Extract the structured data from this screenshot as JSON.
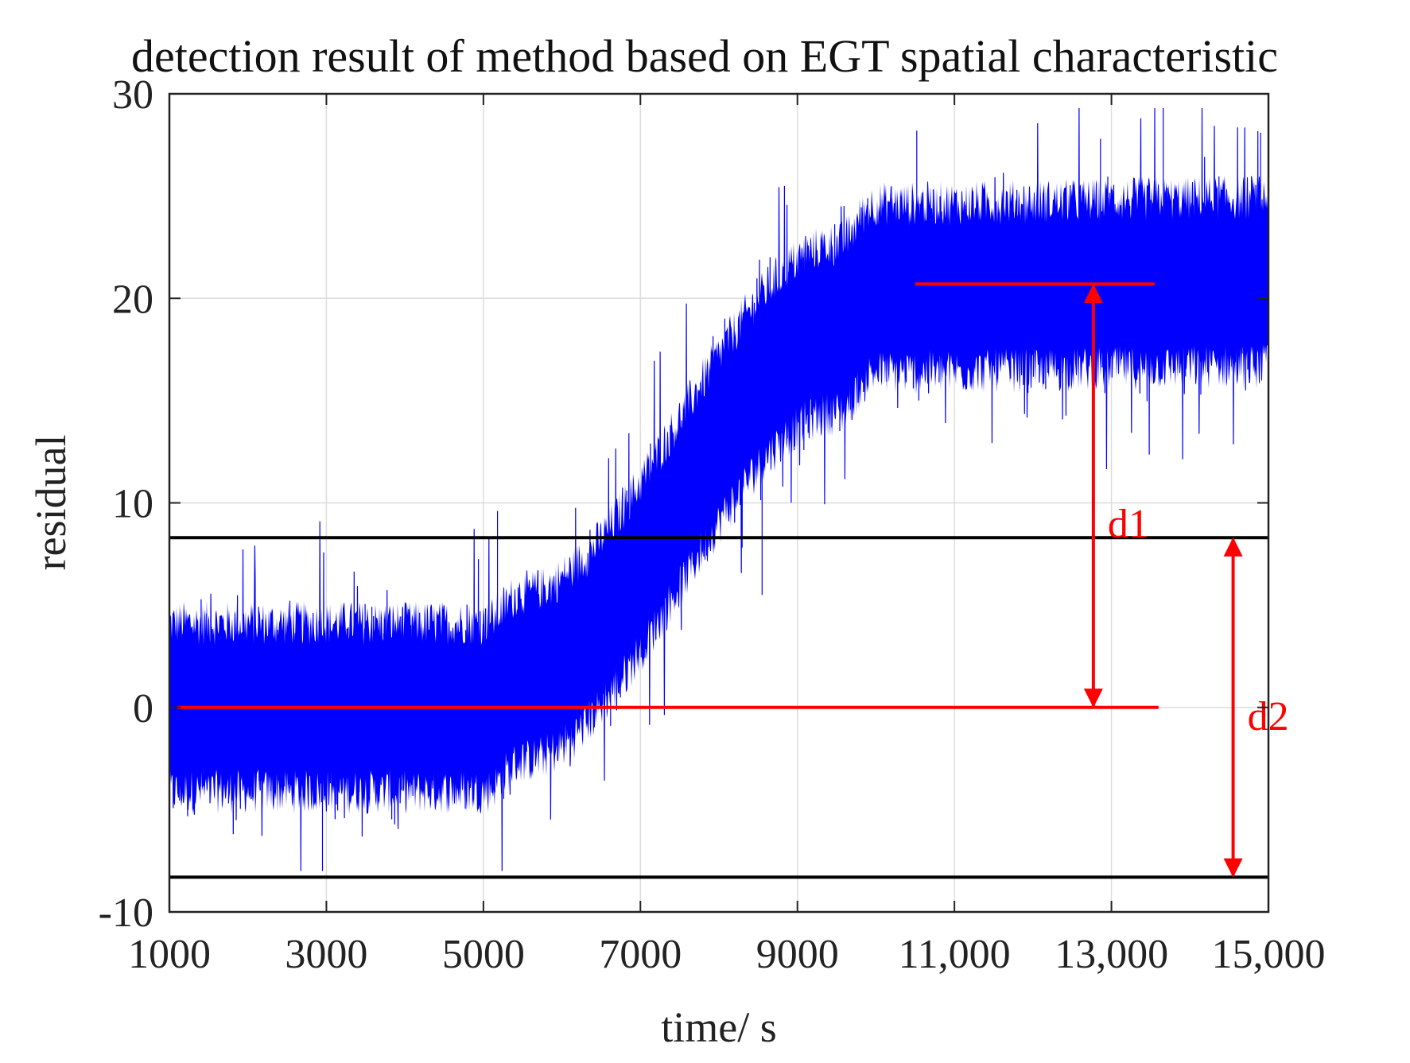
{
  "chart_data": {
    "type": "line",
    "title": "detection result of method based on EGT spatial characteristic",
    "xlabel": "time/ s",
    "ylabel": "residual",
    "xlim": [
      1000,
      15000
    ],
    "ylim": [
      -10,
      30
    ],
    "grid": true,
    "x_ticks": [
      {
        "value": 1000,
        "label": "1000"
      },
      {
        "value": 3000,
        "label": "3000"
      },
      {
        "value": 5000,
        "label": "5000"
      },
      {
        "value": 7000,
        "label": "7000"
      },
      {
        "value": 9000,
        "label": "9000"
      },
      {
        "value": 11000,
        "label": "11,000"
      },
      {
        "value": 13000,
        "label": "13,000"
      },
      {
        "value": 15000,
        "label": "15,000"
      }
    ],
    "y_ticks": [
      {
        "value": -10,
        "label": "-10"
      },
      {
        "value": 0,
        "label": "0"
      },
      {
        "value": 10,
        "label": "10"
      },
      {
        "value": 20,
        "label": "20"
      },
      {
        "value": 30,
        "label": "30"
      }
    ],
    "series": [
      {
        "name": "residual",
        "color": "#0000ff",
        "trend": {
          "x": [
            1000,
            5000,
            5500,
            9500,
            10000,
            15000
          ],
          "y": [
            0.0,
            0.0,
            1.5,
            18.5,
            20.5,
            20.8
          ]
        },
        "noise_amplitude": 5.5,
        "peak_max": 29.3,
        "peak_min": -8.0
      }
    ],
    "thresholds": [
      {
        "name": "upper-threshold",
        "y": 8.3,
        "x": [
          1000,
          15000
        ],
        "color": "#000000"
      },
      {
        "name": "lower-threshold",
        "y": -8.3,
        "x": [
          1000,
          15000
        ],
        "color": "#000000"
      }
    ],
    "mean_lines": [
      {
        "name": "mean-before-fault",
        "y": 0.0,
        "x": [
          1100,
          13600
        ],
        "color": "#ff0000"
      },
      {
        "name": "mean-after-fault",
        "y": 20.7,
        "x": [
          10500,
          13550
        ],
        "color": "#ff0000"
      }
    ],
    "annotations": [
      {
        "label": "d1",
        "x": 12770,
        "y_from": 0.0,
        "y_to": 20.7,
        "label_y": 9.0,
        "color": "#ff0000"
      },
      {
        "label": "d2",
        "x": 14550,
        "y_from": -8.3,
        "y_to": 8.3,
        "label_y": -0.4,
        "color": "#ff0000"
      }
    ]
  }
}
